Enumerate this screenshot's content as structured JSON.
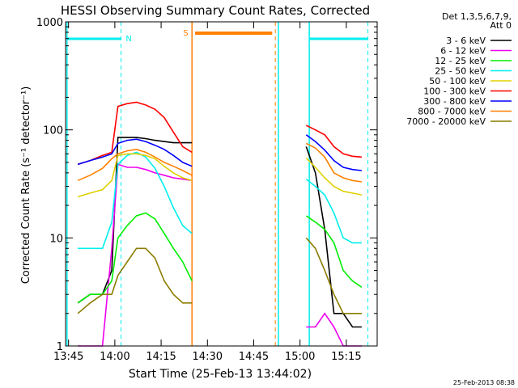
{
  "chart_data": {
    "type": "line",
    "title": "HESSI Observing Summary Count Rates, Corrected",
    "xlabel": "Start Time (25-Feb-13 13:44:02)",
    "ylabel": "Corrected Count Rate (s⁻¹ detector⁻¹)",
    "yscale": "log",
    "ylim": [
      1,
      1000
    ],
    "xlim": [
      "13:44:02",
      "15:25:00"
    ],
    "x_ticks": [
      "13:45",
      "14:00",
      "14:15",
      "14:30",
      "14:45",
      "15:00",
      "15:15"
    ],
    "y_ticks": [
      "1",
      "10",
      "100",
      "1000"
    ],
    "legend_position": "top-right",
    "legend_header": [
      "Det 1,3,5,6,7,9,",
      "Att 0"
    ],
    "timestamp": "25-Feb-2013 08:38",
    "x": [
      "13:48",
      "13:52",
      "13:56",
      "13:59",
      "14:01",
      "14:04",
      "14:07",
      "14:10",
      "14:13",
      "14:16",
      "14:19",
      "14:22",
      "14:25",
      "15:02",
      "15:05",
      "15:08",
      "15:11",
      "15:14",
      "15:17",
      "15:20"
    ],
    "series": [
      {
        "name": "3 - 6 keV",
        "color": "#000000",
        "values": [
          2.5,
          3,
          3,
          5,
          85,
          85,
          85,
          83,
          80,
          78,
          76,
          76,
          76,
          70,
          40,
          12,
          2,
          2,
          1.5,
          1.5
        ]
      },
      {
        "name": "6 - 12 keV",
        "color": "#ee00ee",
        "values": [
          1,
          1,
          1,
          8,
          48,
          45,
          45,
          43,
          40,
          38,
          36,
          35,
          34,
          1.5,
          1.5,
          2,
          1.5,
          1,
          1,
          1
        ]
      },
      {
        "name": "12 - 25 keV",
        "color": "#00ee00",
        "values": [
          2.5,
          3,
          3,
          4,
          10,
          13,
          16,
          17,
          15,
          11,
          8,
          6,
          4,
          16,
          14,
          12,
          9,
          5,
          4,
          3.5
        ]
      },
      {
        "name": "25 - 50 keV",
        "color": "#00eeee",
        "values": [
          8,
          8,
          8,
          14,
          48,
          58,
          62,
          56,
          44,
          30,
          19,
          13,
          11,
          35,
          30,
          25,
          17,
          10,
          9,
          9
        ]
      },
      {
        "name": "50 - 100 keV",
        "color": "#e0d000",
        "values": [
          24,
          26,
          28,
          34,
          58,
          60,
          60,
          58,
          54,
          46,
          40,
          36,
          34,
          55,
          45,
          36,
          30,
          27,
          26,
          25
        ]
      },
      {
        "name": "100 - 300 keV",
        "color": "#ff0000",
        "values": [
          48,
          52,
          58,
          62,
          165,
          175,
          180,
          170,
          155,
          130,
          95,
          70,
          62,
          110,
          100,
          90,
          70,
          60,
          57,
          56
        ]
      },
      {
        "name": "300 - 800 keV",
        "color": "#0000ff",
        "values": [
          48,
          52,
          56,
          60,
          75,
          80,
          82,
          78,
          72,
          66,
          58,
          50,
          46,
          90,
          78,
          65,
          52,
          45,
          43,
          42
        ]
      },
      {
        "name": "800 - 7000 keV",
        "color": "#ff8000",
        "values": [
          34,
          38,
          44,
          54,
          60,
          64,
          66,
          62,
          56,
          50,
          46,
          42,
          38,
          75,
          68,
          56,
          40,
          36,
          34,
          33
        ]
      },
      {
        "name": "7000 - 20000 keV",
        "color": "#8b7d00",
        "values": [
          2,
          2.5,
          3,
          3,
          4.5,
          6,
          8,
          8,
          6.5,
          4,
          3,
          2.5,
          2.5,
          10,
          8,
          5,
          3,
          2,
          2,
          2
        ]
      }
    ],
    "annotations": {
      "attenuator_label": "N",
      "saa_label": "S"
    }
  }
}
